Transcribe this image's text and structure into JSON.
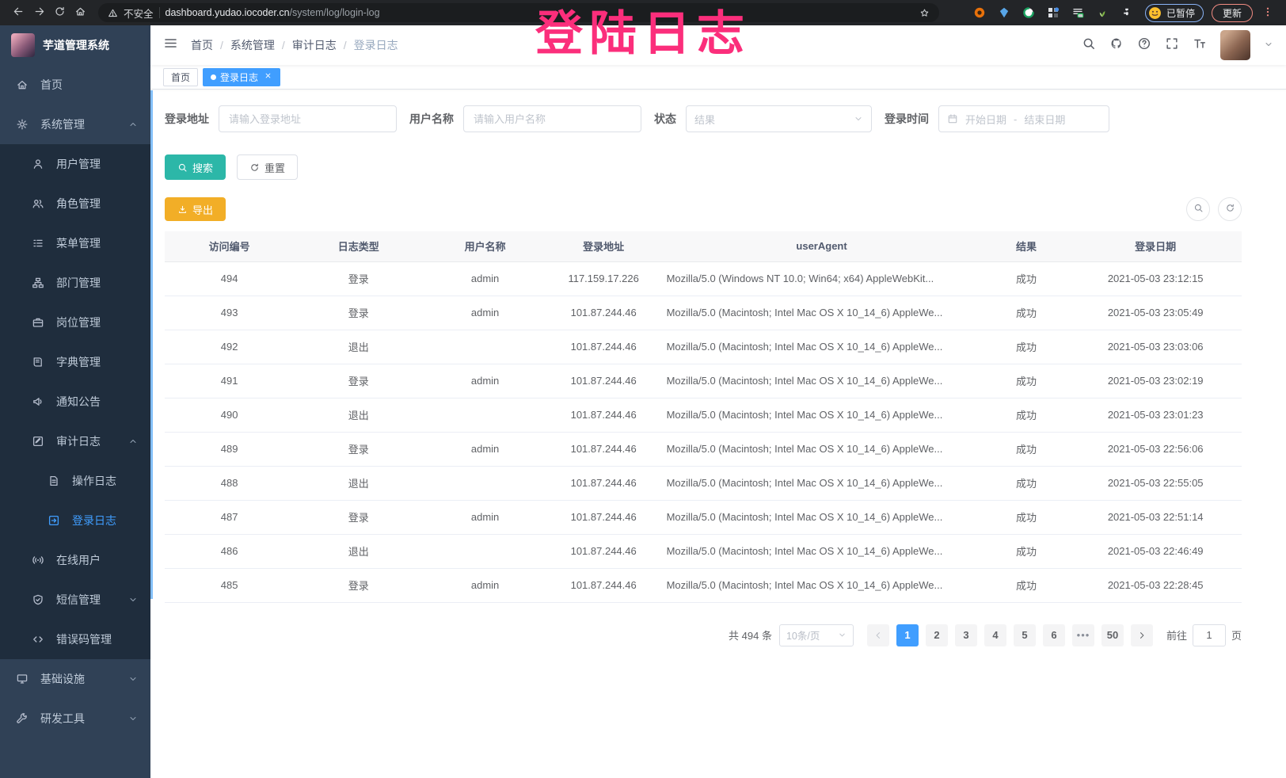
{
  "colors": {
    "accent": "#409eff",
    "teal": "#2cb7a8",
    "amber": "#f2ae27",
    "pink": "#fb2e7b",
    "sidebar_bg": "#304156",
    "submenu_bg": "#1f2d3d"
  },
  "browser": {
    "security_label": "不安全",
    "url_domain": "dashboard.yudao.iocoder.cn",
    "url_path": "/system/log/login-log",
    "profile_label": "已暂停",
    "update_label": "更新"
  },
  "annotation": {
    "text": "登陆日志"
  },
  "sidebar": {
    "title": "芋道管理系统",
    "menu": [
      {
        "key": "home",
        "label": "首页",
        "icon": "home",
        "level": 1
      },
      {
        "key": "system-management",
        "label": "系统管理",
        "icon": "gear",
        "level": 1,
        "arrow": "up"
      },
      {
        "key": "user-management",
        "label": "用户管理",
        "icon": "user",
        "level": 2
      },
      {
        "key": "role-management",
        "label": "角色管理",
        "icon": "users",
        "level": 2
      },
      {
        "key": "menu-management",
        "label": "菜单管理",
        "icon": "list",
        "level": 2
      },
      {
        "key": "dept-management",
        "label": "部门管理",
        "icon": "tree",
        "level": 2
      },
      {
        "key": "post-management",
        "label": "岗位管理",
        "icon": "briefcase",
        "level": 2
      },
      {
        "key": "dict-management",
        "label": "字典管理",
        "icon": "book",
        "level": 2
      },
      {
        "key": "notice",
        "label": "通知公告",
        "icon": "megaphone",
        "level": 2
      },
      {
        "key": "audit-log",
        "label": "审计日志",
        "icon": "edit",
        "level": 2,
        "arrow": "up"
      },
      {
        "key": "operate-log",
        "label": "操作日志",
        "icon": "doc",
        "level": 3
      },
      {
        "key": "login-log",
        "label": "登录日志",
        "icon": "login",
        "level": 3,
        "active": true
      },
      {
        "key": "online-users",
        "label": "在线用户",
        "icon": "online",
        "level": 2
      },
      {
        "key": "sms-management",
        "label": "短信管理",
        "icon": "shield",
        "level": 2,
        "arrow": "down"
      },
      {
        "key": "error-code-management",
        "label": "错误码管理",
        "icon": "code",
        "level": 2
      },
      {
        "key": "infrastructure",
        "label": "基础设施",
        "icon": "monitor",
        "level": 1,
        "arrow": "down"
      },
      {
        "key": "dev-tools",
        "label": "研发工具",
        "icon": "wrench",
        "level": 1,
        "arrow": "down"
      }
    ]
  },
  "header": {
    "breadcrumb": [
      "首页",
      "系统管理",
      "审计日志",
      "登录日志"
    ],
    "separator": "/"
  },
  "tags": [
    {
      "label": "首页"
    },
    {
      "label": "登录日志"
    }
  ],
  "filters": {
    "login_address": {
      "label": "登录地址",
      "placeholder": "请输入登录地址"
    },
    "username": {
      "label": "用户名称",
      "placeholder": "请输入用户名称"
    },
    "status": {
      "label": "状态",
      "placeholder": "结果"
    },
    "login_time": {
      "label": "登录时间",
      "start_placeholder": "开始日期",
      "separator": "-",
      "end_placeholder": "结束日期"
    }
  },
  "toolbar": {
    "search": "搜索",
    "reset": "重置",
    "export": "导出"
  },
  "table": {
    "keys": [
      "id",
      "type",
      "username",
      "ip",
      "user_agent",
      "result",
      "date"
    ],
    "columns": [
      "访问编号",
      "日志类型",
      "用户名称",
      "登录地址",
      "userAgent",
      "结果",
      "登录日期"
    ],
    "rows": [
      [
        "494",
        "登录",
        "admin",
        "117.159.17.226",
        "Mozilla/5.0 (Windows NT 10.0; Win64; x64) AppleWebKit...",
        "成功",
        "2021-05-03 23:12:15"
      ],
      [
        "493",
        "登录",
        "admin",
        "101.87.244.46",
        "Mozilla/5.0 (Macintosh; Intel Mac OS X 10_14_6) AppleWe...",
        "成功",
        "2021-05-03 23:05:49"
      ],
      [
        "492",
        "退出",
        "",
        "101.87.244.46",
        "Mozilla/5.0 (Macintosh; Intel Mac OS X 10_14_6) AppleWe...",
        "成功",
        "2021-05-03 23:03:06"
      ],
      [
        "491",
        "登录",
        "admin",
        "101.87.244.46",
        "Mozilla/5.0 (Macintosh; Intel Mac OS X 10_14_6) AppleWe...",
        "成功",
        "2021-05-03 23:02:19"
      ],
      [
        "490",
        "退出",
        "",
        "101.87.244.46",
        "Mozilla/5.0 (Macintosh; Intel Mac OS X 10_14_6) AppleWe...",
        "成功",
        "2021-05-03 23:01:23"
      ],
      [
        "489",
        "登录",
        "admin",
        "101.87.244.46",
        "Mozilla/5.0 (Macintosh; Intel Mac OS X 10_14_6) AppleWe...",
        "成功",
        "2021-05-03 22:56:06"
      ],
      [
        "488",
        "退出",
        "",
        "101.87.244.46",
        "Mozilla/5.0 (Macintosh; Intel Mac OS X 10_14_6) AppleWe...",
        "成功",
        "2021-05-03 22:55:05"
      ],
      [
        "487",
        "登录",
        "admin",
        "101.87.244.46",
        "Mozilla/5.0 (Macintosh; Intel Mac OS X 10_14_6) AppleWe...",
        "成功",
        "2021-05-03 22:51:14"
      ],
      [
        "486",
        "退出",
        "",
        "101.87.244.46",
        "Mozilla/5.0 (Macintosh; Intel Mac OS X 10_14_6) AppleWe...",
        "成功",
        "2021-05-03 22:46:49"
      ],
      [
        "485",
        "登录",
        "admin",
        "101.87.244.46",
        "Mozilla/5.0 (Macintosh; Intel Mac OS X 10_14_6) AppleWe...",
        "成功",
        "2021-05-03 22:28:45"
      ]
    ]
  },
  "pagination": {
    "total_label": "共 494 条",
    "page_size_label": "10条/页",
    "pages": [
      "1",
      "2",
      "3",
      "4",
      "5",
      "6",
      "•••",
      "50"
    ],
    "active_page": "1",
    "goto_prefix": "前往",
    "goto_value": "1",
    "goto_suffix": "页"
  }
}
